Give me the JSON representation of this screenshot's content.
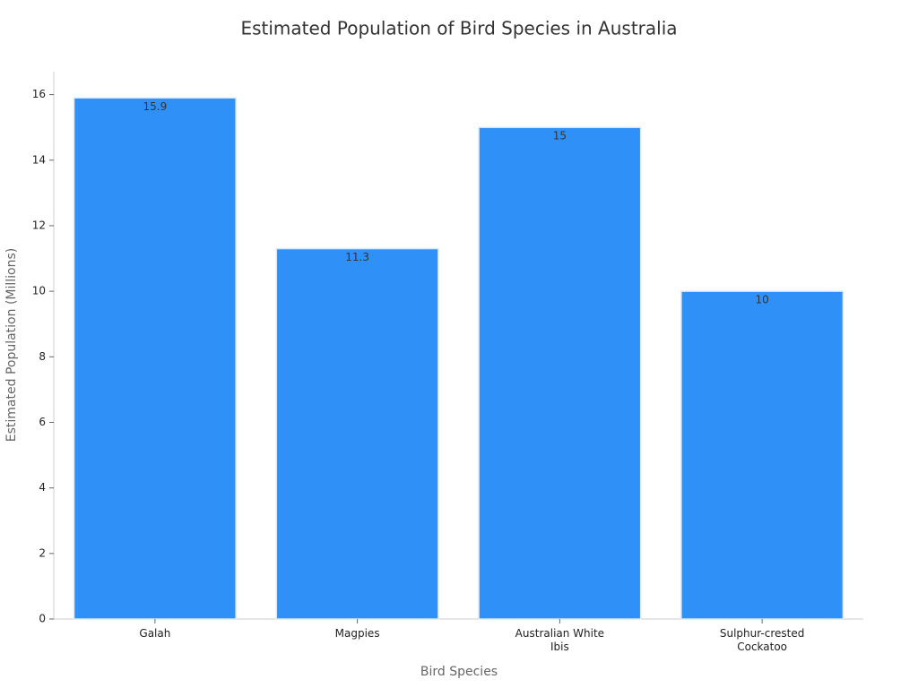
{
  "chart_data": {
    "type": "bar",
    "title": "Estimated Population of Bird Species in Australia",
    "x_label": "Bird Species",
    "y_label": "Estimated Population (Millions)",
    "categories": [
      "Galah",
      "Magpies",
      "Australian White Ibis",
      "Sulphur-crested Cockatoo"
    ],
    "values": [
      15.9,
      11.3,
      15,
      10
    ],
    "color": "#2f91f7",
    "ylim": [
      0,
      16.7
    ],
    "yticks": [
      0,
      2,
      4,
      6,
      8,
      10,
      12,
      14,
      16
    ],
    "grid": false
  }
}
